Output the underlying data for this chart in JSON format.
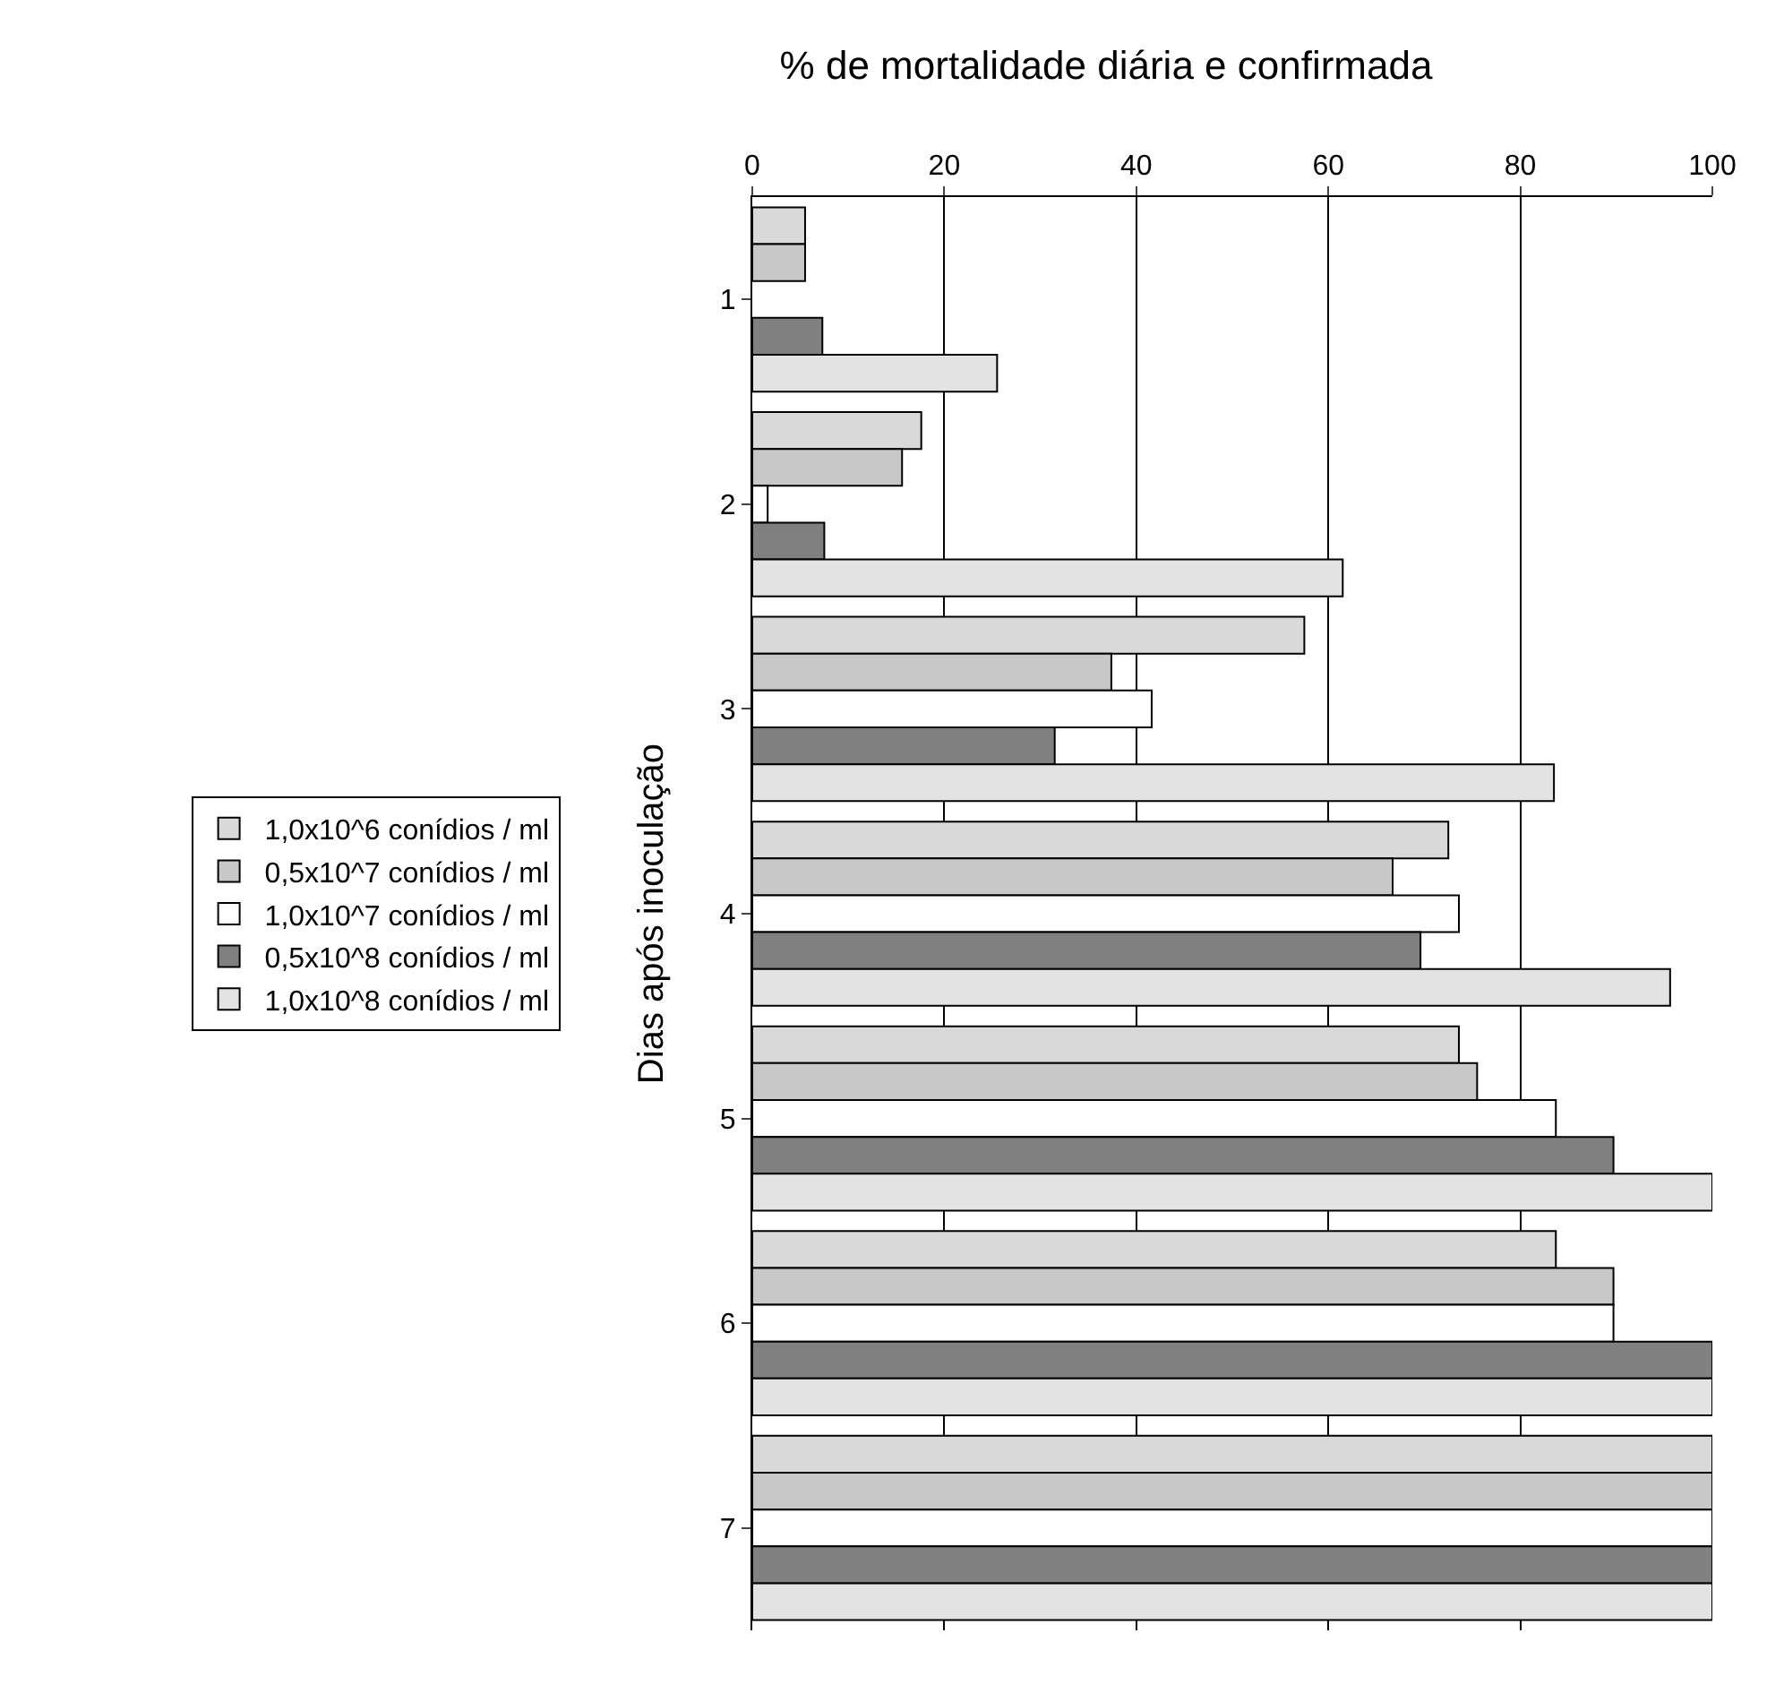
{
  "chart_data": {
    "type": "bar",
    "orientation": "horizontal",
    "title": "% de mortalidade diária e confirmada",
    "ylabel": "Dias após inoculação",
    "categories": [
      "1",
      "2",
      "3",
      "4",
      "5",
      "6",
      "7"
    ],
    "series": [
      {
        "name": "1,0x10^6 conídios / ml",
        "color": "#d9d9d9",
        "values": [
          5.5,
          17.6,
          57.5,
          72.5,
          73.6,
          83.7,
          100
        ]
      },
      {
        "name": "0,5x10^7 conídios / ml",
        "color": "#c8c8c8",
        "values": [
          5.5,
          15.6,
          37.4,
          66.7,
          75.5,
          89.7,
          100
        ]
      },
      {
        "name": "1,0x10^7 conídios / ml",
        "color": "#ffffff",
        "values": [
          null,
          1.6,
          41.6,
          73.6,
          83.7,
          89.7,
          100
        ]
      },
      {
        "name": "0,5x10^8 conídios / ml",
        "color": "#808080",
        "values": [
          7.3,
          7.5,
          31.5,
          69.6,
          89.7,
          100,
          100
        ]
      },
      {
        "name": "1,0x10^8 conídios / ml",
        "color": "#e3e3e3",
        "values": [
          25.5,
          61.5,
          83.5,
          95.6,
          100,
          100,
          100
        ]
      }
    ],
    "xlim": [
      0,
      100
    ],
    "xticks": [
      0,
      20,
      40,
      60,
      80,
      100
    ],
    "grid": "x",
    "legend": "left"
  }
}
